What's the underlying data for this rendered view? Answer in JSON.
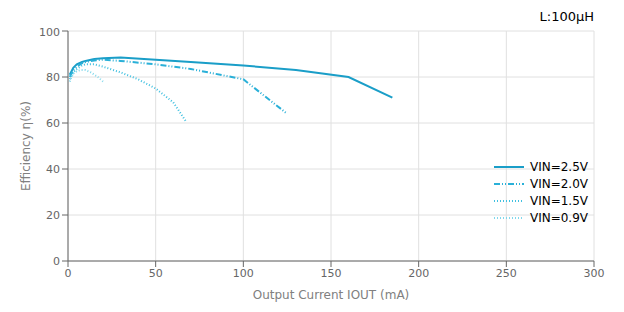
{
  "chart_data": {
    "type": "line",
    "title": "L:100μH",
    "x_label": "Output Current IOUT (mA)",
    "y_label": "Efficiency η(%)",
    "xlim": [
      0,
      300
    ],
    "ylim": [
      0,
      100
    ],
    "xticks": [
      0,
      50,
      100,
      150,
      200,
      250,
      300
    ],
    "yticks": [
      0,
      20,
      40,
      60,
      80,
      100
    ],
    "grid": true,
    "legend": "lower right",
    "series": [
      {
        "name": "VIN=2.5V",
        "color": "#1a9ec8",
        "line_style": "solid",
        "x": [
          1,
          3,
          5,
          8,
          10,
          15,
          20,
          30,
          50,
          70,
          100,
          130,
          160,
          185
        ],
        "values": [
          81,
          84,
          85.5,
          86.5,
          87,
          87.8,
          88.2,
          88.5,
          87.5,
          86.5,
          85,
          83,
          80,
          71
        ]
      },
      {
        "name": "VIN=2.0V",
        "color": "#2ab0d8",
        "line_style": "dashdot",
        "x": [
          1,
          3,
          5,
          8,
          10,
          15,
          20,
          30,
          50,
          70,
          100,
          125
        ],
        "values": [
          80,
          83,
          84.5,
          86,
          86.5,
          87.2,
          87.5,
          87,
          85.5,
          83.5,
          79,
          64
        ]
      },
      {
        "name": "VIN=1.5V",
        "color": "#40c0e0",
        "line_style": "dotted",
        "x": [
          1,
          3,
          5,
          8,
          10,
          15,
          20,
          30,
          40,
          50,
          60,
          67
        ],
        "values": [
          79,
          82,
          83.5,
          85,
          85.5,
          85.5,
          84.5,
          82,
          79,
          75,
          69,
          61
        ]
      },
      {
        "name": "VIN=0.9V",
        "color": "#80d8ec",
        "line_style": "dotted",
        "x": [
          1,
          2,
          3,
          5,
          7,
          10,
          13,
          17,
          20
        ],
        "values": [
          78,
          80,
          81.5,
          82.5,
          83,
          83,
          82,
          80,
          78
        ]
      }
    ]
  }
}
